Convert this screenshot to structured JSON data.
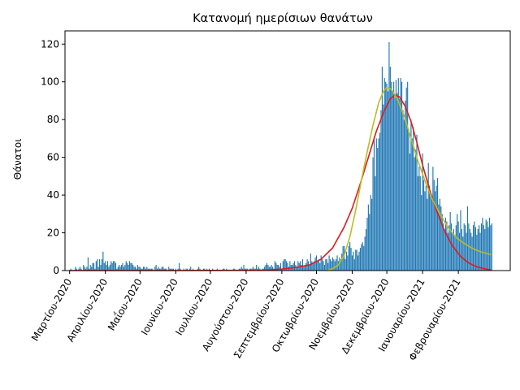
{
  "chart_data": {
    "type": "bar",
    "title": "Κατανομή ημερίσιων θανάτων",
    "xlabel": "",
    "ylabel": "Θάνατοι",
    "xlim": [
      "2020-02-26",
      "2021-03-18"
    ],
    "ylim": [
      0,
      127
    ],
    "y_ticks": [
      0,
      20,
      40,
      60,
      80,
      100,
      120
    ],
    "x_ticks": [
      {
        "date": "2020-03-01",
        "label": "Μαρτίου-2020"
      },
      {
        "date": "2020-04-01",
        "label": "Απριλίου-2020"
      },
      {
        "date": "2020-05-01",
        "label": "Μαΐου-2020"
      },
      {
        "date": "2020-06-01",
        "label": "Ιουνίου-2020"
      },
      {
        "date": "2020-07-01",
        "label": "Ιουλίου-2020"
      },
      {
        "date": "2020-08-01",
        "label": "Αυγούστου-2020"
      },
      {
        "date": "2020-09-01",
        "label": "Σεπτεμβρίου-2020"
      },
      {
        "date": "2020-10-01",
        "label": "Οκτωβρίου-2020"
      },
      {
        "date": "2020-11-01",
        "label": "Νοεμβρίου-2020"
      },
      {
        "date": "2020-12-01",
        "label": "Δεκεμβρίου-2020"
      },
      {
        "date": "2021-01-01",
        "label": "Ιανουαρίου-2021"
      },
      {
        "date": "2021-02-01",
        "label": "Φεβρουαρίου-2021"
      }
    ],
    "grid": false,
    "bar_color": "#1f77b4",
    "bars": {
      "start_date": "2020-03-01",
      "values": [
        0,
        1,
        0,
        0,
        0,
        2,
        1,
        0,
        1,
        2,
        1,
        0,
        3,
        2,
        1,
        2,
        7,
        1,
        3,
        2,
        4,
        4,
        1,
        5,
        6,
        2,
        6,
        3,
        6,
        10,
        4,
        5,
        3,
        5,
        2,
        3,
        5,
        4,
        5,
        5,
        4,
        1,
        2,
        3,
        2,
        3,
        4,
        2,
        3,
        5,
        4,
        3,
        5,
        4,
        4,
        3,
        2,
        2,
        1,
        3,
        2,
        2,
        1,
        1,
        2,
        2,
        1,
        2,
        1,
        1,
        1,
        1,
        1,
        0,
        2,
        3,
        1,
        2,
        1,
        1,
        2,
        2,
        1,
        1,
        1,
        0,
        2,
        1,
        1,
        1,
        1,
        0,
        1,
        0,
        1,
        4,
        1,
        0,
        0,
        1,
        0,
        1,
        1,
        0,
        1,
        2,
        0,
        1,
        0,
        0,
        0,
        1,
        2,
        1,
        0,
        0,
        1,
        1,
        0,
        1,
        0,
        1,
        0,
        0,
        1,
        0,
        0,
        0,
        1,
        0,
        0,
        0,
        0,
        1,
        1,
        0,
        1,
        0,
        0,
        0,
        0,
        0,
        1,
        1,
        0,
        0,
        0,
        1,
        1,
        2,
        1,
        3,
        1,
        1,
        1,
        0,
        1,
        1,
        1,
        2,
        1,
        1,
        3,
        1,
        2,
        1,
        0,
        1,
        1,
        2,
        3,
        4,
        3,
        2,
        2,
        3,
        2,
        1,
        5,
        4,
        3,
        3,
        2,
        4,
        1,
        5,
        6,
        6,
        5,
        4,
        2,
        5,
        3,
        3,
        4,
        5,
        3,
        2,
        5,
        4,
        5,
        3,
        6,
        2,
        3,
        4,
        6,
        5,
        3,
        9,
        5,
        4,
        5,
        7,
        8,
        5,
        6,
        4,
        8,
        6,
        5,
        3,
        6,
        6,
        4,
        8,
        6,
        5,
        7,
        6,
        5,
        6,
        8,
        5,
        7,
        6,
        9,
        13,
        13,
        6,
        10,
        8,
        13,
        15,
        12,
        8,
        10,
        6,
        11,
        11,
        8,
        10,
        12,
        14,
        15,
        13,
        18,
        22,
        28,
        35,
        30,
        40,
        38,
        60,
        71,
        50,
        70,
        65,
        70,
        73,
        85,
        108,
        88,
        102,
        100,
        99,
        95,
        121,
        108,
        100,
        95,
        100,
        92,
        101,
        94,
        102,
        91,
        102,
        100,
        85,
        80,
        90,
        97,
        100,
        75,
        62,
        80,
        70,
        76,
        60,
        64,
        72,
        50,
        55,
        50,
        40,
        62,
        48,
        42,
        45,
        38,
        57,
        45,
        40,
        38,
        55,
        48,
        42,
        45,
        49,
        35,
        38,
        34,
        30,
        25,
        22,
        28,
        26,
        20,
        24,
        31,
        25,
        20,
        22,
        18,
        24,
        30,
        26,
        20,
        32,
        22,
        18,
        25,
        24,
        20,
        34,
        25,
        22,
        20,
        18,
        24,
        26,
        23,
        19,
        22,
        24,
        20,
        25,
        28,
        24,
        22,
        27,
        26,
        23,
        28,
        24,
        25
      ],
      "note_length": 0
    },
    "series": [
      {
        "name": "",
        "type": "line",
        "color": "#e31a1c",
        "points": [
          [
            "2020-03-01",
            0
          ],
          [
            "2020-06-01",
            0
          ],
          [
            "2020-08-15",
            0.2
          ],
          [
            "2020-09-01",
            0.8
          ],
          [
            "2020-09-15",
            1.8
          ],
          [
            "2020-09-25",
            3
          ],
          [
            "2020-10-05",
            6
          ],
          [
            "2020-10-15",
            12
          ],
          [
            "2020-10-25",
            23
          ],
          [
            "2020-11-01",
            33
          ],
          [
            "2020-11-08",
            46
          ],
          [
            "2020-11-15",
            60
          ],
          [
            "2020-11-22",
            74
          ],
          [
            "2020-11-29",
            85
          ],
          [
            "2020-12-04",
            91
          ],
          [
            "2020-12-08",
            93
          ],
          [
            "2020-12-12",
            92
          ],
          [
            "2020-12-17",
            87
          ],
          [
            "2020-12-22",
            79
          ],
          [
            "2020-12-27",
            68
          ],
          [
            "2021-01-01",
            56
          ],
          [
            "2021-01-07",
            43
          ],
          [
            "2021-01-13",
            32
          ],
          [
            "2021-01-20",
            21
          ],
          [
            "2021-01-27",
            13
          ],
          [
            "2021-02-03",
            7.5
          ],
          [
            "2021-02-10",
            4
          ],
          [
            "2021-02-17",
            2
          ],
          [
            "2021-02-24",
            0.9
          ],
          [
            "2021-03-01",
            0.4
          ]
        ]
      },
      {
        "name": "",
        "type": "line",
        "color": "#bcbd22",
        "points": [
          [
            "2020-10-10",
            0
          ],
          [
            "2020-10-15",
            1
          ],
          [
            "2020-10-20",
            3
          ],
          [
            "2020-10-25",
            8
          ],
          [
            "2020-10-30",
            18
          ],
          [
            "2020-11-04",
            32
          ],
          [
            "2020-11-09",
            48
          ],
          [
            "2020-11-14",
            63
          ],
          [
            "2020-11-19",
            77
          ],
          [
            "2020-11-24",
            89
          ],
          [
            "2020-11-28",
            95
          ],
          [
            "2020-12-01",
            97
          ],
          [
            "2020-12-05",
            96
          ],
          [
            "2020-12-10",
            91
          ],
          [
            "2020-12-16",
            82
          ],
          [
            "2020-12-22",
            70
          ],
          [
            "2020-12-28",
            58
          ],
          [
            "2021-01-04",
            46
          ],
          [
            "2021-01-10",
            37
          ],
          [
            "2021-01-17",
            29
          ],
          [
            "2021-01-24",
            22
          ],
          [
            "2021-01-31",
            17
          ],
          [
            "2021-02-07",
            14
          ],
          [
            "2021-02-14",
            11.5
          ],
          [
            "2021-02-21",
            9.8
          ],
          [
            "2021-03-01",
            8.5
          ]
        ]
      }
    ]
  }
}
